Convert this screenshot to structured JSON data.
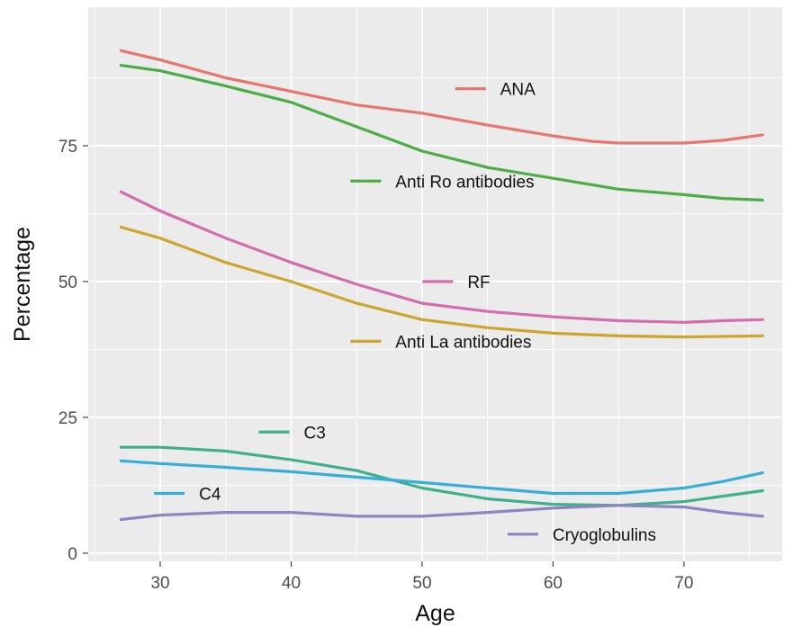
{
  "chart_data": {
    "type": "line",
    "xlabel": "Age",
    "ylabel": "Percentage",
    "xlim": [
      24.5,
      77.5
    ],
    "ylim": [
      -1.5,
      100.5
    ],
    "x_ticks": [
      30,
      40,
      50,
      60,
      70
    ],
    "y_ticks": [
      0,
      25,
      50,
      75
    ],
    "grid": true,
    "legend": "none",
    "background": "#EBEBEB",
    "series": [
      {
        "name": "ANA",
        "color": "#E8766F",
        "label_pos": [
          55,
          85.5
        ],
        "x": [
          27,
          30,
          35,
          40,
          45,
          50,
          55,
          60,
          63,
          65,
          70,
          73,
          76
        ],
        "y": [
          92.5,
          90.8,
          87.5,
          85,
          82.5,
          81,
          78.8,
          76.8,
          75.8,
          75.5,
          75.5,
          76,
          77
        ]
      },
      {
        "name": "Anti Ro antibodies",
        "color": "#4CAD46",
        "label_pos": [
          47,
          68.5
        ],
        "x": [
          27,
          30,
          35,
          40,
          45,
          50,
          55,
          60,
          65,
          70,
          73,
          76
        ],
        "y": [
          89.8,
          88.8,
          86,
          83,
          78.5,
          74,
          71,
          69,
          67,
          66,
          65.3,
          65
        ]
      },
      {
        "name": "RF",
        "color": "#D36DAD",
        "label_pos": [
          52.5,
          50
        ],
        "x": [
          27,
          30,
          35,
          40,
          45,
          50,
          55,
          60,
          65,
          70,
          73,
          76
        ],
        "y": [
          66.5,
          63,
          58,
          53.5,
          49.5,
          46,
          44.5,
          43.5,
          42.8,
          42.5,
          42.8,
          43
        ]
      },
      {
        "name": "Anti La antibodies",
        "color": "#CDA52E",
        "label_pos": [
          47,
          39
        ],
        "x": [
          27,
          30,
          35,
          40,
          45,
          50,
          55,
          60,
          65,
          70,
          76
        ],
        "y": [
          60,
          58,
          53.5,
          50,
          46,
          43,
          41.5,
          40.5,
          40,
          39.8,
          40
        ]
      },
      {
        "name": "C3",
        "color": "#3FB08C",
        "label_pos": [
          40,
          22.3
        ],
        "x": [
          27,
          30,
          35,
          40,
          45,
          50,
          55,
          60,
          65,
          70,
          73,
          76
        ],
        "y": [
          19.5,
          19.5,
          18.8,
          17.2,
          15.2,
          12,
          10,
          9,
          8.8,
          9.5,
          10.5,
          11.5
        ]
      },
      {
        "name": "C4",
        "color": "#36AED9",
        "label_pos": [
          32,
          11
        ],
        "x": [
          27,
          30,
          35,
          40,
          45,
          50,
          55,
          60,
          65,
          70,
          73,
          76
        ],
        "y": [
          17,
          16.5,
          15.8,
          15,
          14,
          13,
          12,
          11,
          11,
          12,
          13.2,
          14.8
        ]
      },
      {
        "name": "Cryoglobulins",
        "color": "#8C85C1",
        "label_pos": [
          59,
          3.5
        ],
        "x": [
          27,
          30,
          35,
          40,
          45,
          50,
          55,
          60,
          65,
          70,
          73,
          76
        ],
        "y": [
          6.2,
          7,
          7.5,
          7.5,
          6.8,
          6.8,
          7.5,
          8.3,
          8.8,
          8.5,
          7.5,
          6.8
        ]
      }
    ]
  }
}
